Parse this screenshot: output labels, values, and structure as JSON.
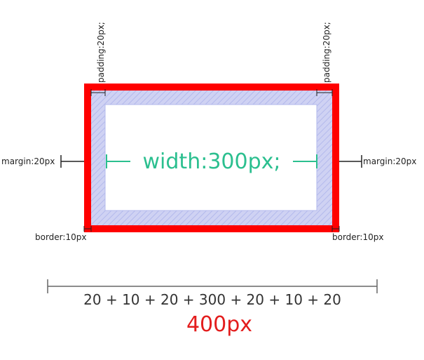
{
  "labels": {
    "padding_top_left": "padding:20px;",
    "padding_top_right": "padding:20px;",
    "margin_left": "margin:20px",
    "margin_right": "margin:20px",
    "border_left": "border:10px",
    "border_right": "border:10px",
    "content_width": "width:300px;"
  },
  "formula": "20 + 10 + 20 + 300 + 20 + 10 + 20",
  "total": "400px",
  "colors": {
    "border": "#ff0000",
    "padding": "#cfd2f3",
    "padding_hatch": "#b3b9ec",
    "content": "#ffffff",
    "width_marker": "#2bbf8f",
    "total": "#e31d1d",
    "guide": "#222222",
    "measure": "#666666"
  }
}
